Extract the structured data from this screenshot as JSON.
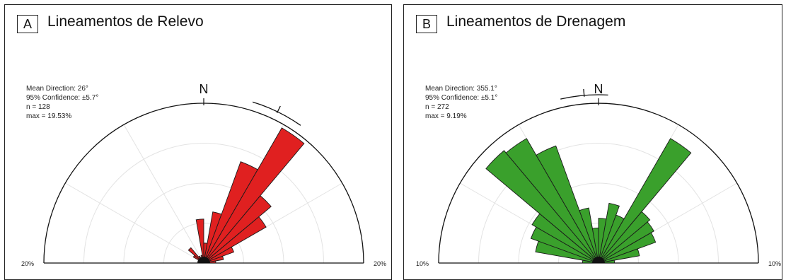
{
  "panels": [
    {
      "letter": "A",
      "title": "Lineamentos de Relevo",
      "stats": {
        "mean_direction": "Mean Direction: 26°",
        "confidence": "95% Confidence: ±5.7°",
        "n": "n = 128",
        "max": "max = 19.53%"
      },
      "north_label": "N",
      "scale_left": "20%",
      "scale_right": "20%",
      "fill_color": "#e02020"
    },
    {
      "letter": "B",
      "title": "Lineamentos de Drenagem",
      "stats": {
        "mean_direction": "Mean Direction: 355.1°",
        "confidence": "95% Confidence: ±5.1°",
        "n": "n = 272",
        "max": "max = 9.19%"
      },
      "north_label": "N",
      "scale_left": "10%",
      "scale_right": "10%",
      "fill_color": "#3aa02c"
    }
  ],
  "chart_data": [
    {
      "type": "rose",
      "title": "Lineamentos de Relevo",
      "orientation": "half-rose (270°–90° via N)",
      "radial_max_percent": 20,
      "bin_width_deg": 10,
      "mean_direction_deg": 26,
      "confidence_deg": 5.7,
      "n": 128,
      "max_percent": 19.53,
      "bins": [
        {
          "start": -60,
          "end": -50,
          "value": 1.5
        },
        {
          "start": -50,
          "end": -40,
          "value": 2.5
        },
        {
          "start": -40,
          "end": -30,
          "value": 1.0
        },
        {
          "start": -20,
          "end": -10,
          "value": 1.0
        },
        {
          "start": -10,
          "end": 0,
          "value": 5.5
        },
        {
          "start": 0,
          "end": 10,
          "value": 2.5
        },
        {
          "start": 10,
          "end": 20,
          "value": 6.5
        },
        {
          "start": 20,
          "end": 30,
          "value": 13.5
        },
        {
          "start": 30,
          "end": 40,
          "value": 19.53
        },
        {
          "start": 40,
          "end": 50,
          "value": 11.0
        },
        {
          "start": 50,
          "end": 60,
          "value": 9.0
        },
        {
          "start": 60,
          "end": 70,
          "value": 4.0
        },
        {
          "start": 70,
          "end": 80,
          "value": 2.5
        },
        {
          "start": 80,
          "end": 90,
          "value": 1.5
        }
      ]
    },
    {
      "type": "rose",
      "title": "Lineamentos de Drenagem",
      "orientation": "half-rose (270°–90° via N)",
      "radial_max_percent": 10,
      "bin_width_deg": 10,
      "mean_direction_deg": 355.1,
      "confidence_deg": 5.1,
      "n": 272,
      "max_percent": 9.19,
      "bins": [
        {
          "start": -90,
          "end": -80,
          "value": 1.0
        },
        {
          "start": -80,
          "end": -70,
          "value": 4.0
        },
        {
          "start": -70,
          "end": -60,
          "value": 4.5
        },
        {
          "start": -60,
          "end": -50,
          "value": 4.8
        },
        {
          "start": -50,
          "end": -40,
          "value": 9.19
        },
        {
          "start": -40,
          "end": -30,
          "value": 9.0
        },
        {
          "start": -30,
          "end": -20,
          "value": 7.8
        },
        {
          "start": -20,
          "end": -10,
          "value": 3.5
        },
        {
          "start": -10,
          "end": 0,
          "value": 2.2
        },
        {
          "start": 0,
          "end": 10,
          "value": 2.8
        },
        {
          "start": 10,
          "end": 20,
          "value": 3.8
        },
        {
          "start": 20,
          "end": 30,
          "value": 3.2
        },
        {
          "start": 30,
          "end": 40,
          "value": 9.0
        },
        {
          "start": 40,
          "end": 50,
          "value": 4.2
        },
        {
          "start": 50,
          "end": 60,
          "value": 4.0
        },
        {
          "start": 60,
          "end": 70,
          "value": 3.8
        },
        {
          "start": 70,
          "end": 80,
          "value": 2.6
        },
        {
          "start": 80,
          "end": 90,
          "value": 1.0
        }
      ]
    }
  ]
}
